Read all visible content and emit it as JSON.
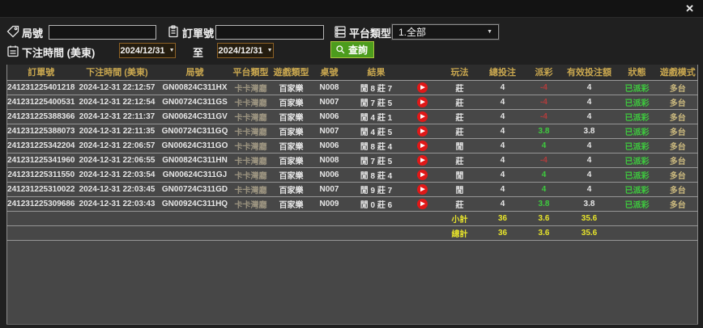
{
  "window": {
    "close_icon": "✕"
  },
  "icons": {
    "replay": "▶",
    "dropdown_arrow": "▼"
  },
  "colors": {
    "accent_green": "#4c9c1d",
    "header_gold": "#c9a74f",
    "positive_green": "#3ecb3e",
    "negative_red": "#b23c3c",
    "summary_yellow": "#e6e32b",
    "date_border_orange": "#8d6126"
  },
  "filters": {
    "round_label": "局號",
    "order_label": "訂單號",
    "platform_label": "平台類型",
    "platform_value": "1.全部",
    "bet_time_label": "下注時間 (美東)",
    "date_from": "2024/12/31",
    "to_label": "至",
    "date_to": "2024/12/31",
    "search_label": "查詢"
  },
  "table": {
    "headers": [
      "訂單號",
      "下注時間 (美東)",
      "局號",
      "平台類型",
      "遊戲類型",
      "桌號",
      "結果",
      "",
      "玩法",
      "總投注",
      "派彩",
      "有效投注額",
      "狀態",
      "遊戲模式"
    ],
    "rows": [
      {
        "order": "241231225401218",
        "time": "2024-12-31 22:12:57",
        "round": "GN00824C311HX",
        "platform": "卡卡灣廳",
        "game": "百家樂",
        "table_no": "N008",
        "result": "閒 8 莊 7",
        "play": "莊",
        "total": "4",
        "payout": "-4",
        "valid": "4",
        "status": "已派彩",
        "mode": "多台"
      },
      {
        "order": "241231225400531",
        "time": "2024-12-31 22:12:54",
        "round": "GN00724C311GS",
        "platform": "卡卡灣廳",
        "game": "百家樂",
        "table_no": "N007",
        "result": "閒 7 莊 5",
        "play": "莊",
        "total": "4",
        "payout": "-4",
        "valid": "4",
        "status": "已派彩",
        "mode": "多台"
      },
      {
        "order": "241231225388366",
        "time": "2024-12-31 22:11:37",
        "round": "GN00624C311GV",
        "platform": "卡卡灣廳",
        "game": "百家樂",
        "table_no": "N006",
        "result": "閒 4 莊 1",
        "play": "莊",
        "total": "4",
        "payout": "-4",
        "valid": "4",
        "status": "已派彩",
        "mode": "多台"
      },
      {
        "order": "241231225388073",
        "time": "2024-12-31 22:11:35",
        "round": "GN00724C311GQ",
        "platform": "卡卡灣廳",
        "game": "百家樂",
        "table_no": "N007",
        "result": "閒 4 莊 5",
        "play": "莊",
        "total": "4",
        "payout": "3.8",
        "valid": "3.8",
        "status": "已派彩",
        "mode": "多台"
      },
      {
        "order": "241231225342204",
        "time": "2024-12-31 22:06:57",
        "round": "GN00624C311GO",
        "platform": "卡卡灣廳",
        "game": "百家樂",
        "table_no": "N006",
        "result": "閒 8 莊 4",
        "play": "閒",
        "total": "4",
        "payout": "4",
        "valid": "4",
        "status": "已派彩",
        "mode": "多台"
      },
      {
        "order": "241231225341960",
        "time": "2024-12-31 22:06:55",
        "round": "GN00824C311HN",
        "platform": "卡卡灣廳",
        "game": "百家樂",
        "table_no": "N008",
        "result": "閒 7 莊 5",
        "play": "莊",
        "total": "4",
        "payout": "-4",
        "valid": "4",
        "status": "已派彩",
        "mode": "多台"
      },
      {
        "order": "241231225311550",
        "time": "2024-12-31 22:03:54",
        "round": "GN00624C311GJ",
        "platform": "卡卡灣廳",
        "game": "百家樂",
        "table_no": "N006",
        "result": "閒 8 莊 4",
        "play": "閒",
        "total": "4",
        "payout": "4",
        "valid": "4",
        "status": "已派彩",
        "mode": "多台"
      },
      {
        "order": "241231225310022",
        "time": "2024-12-31 22:03:45",
        "round": "GN00724C311GD",
        "platform": "卡卡灣廳",
        "game": "百家樂",
        "table_no": "N007",
        "result": "閒 9 莊 7",
        "play": "閒",
        "total": "4",
        "payout": "4",
        "valid": "4",
        "status": "已派彩",
        "mode": "多台"
      },
      {
        "order": "241231225309686",
        "time": "2024-12-31 22:03:43",
        "round": "GN00924C311HQ",
        "platform": "卡卡灣廳",
        "game": "百家樂",
        "table_no": "N009",
        "result": "閒 0 莊 6",
        "play": "莊",
        "total": "4",
        "payout": "3.8",
        "valid": "3.8",
        "status": "已派彩",
        "mode": "多台"
      }
    ],
    "subtotal": {
      "label": "小計",
      "total": "36",
      "payout": "3.6",
      "valid": "35.6"
    },
    "grand_total": {
      "label": "總計",
      "total": "36",
      "payout": "3.6",
      "valid": "35.6"
    }
  }
}
